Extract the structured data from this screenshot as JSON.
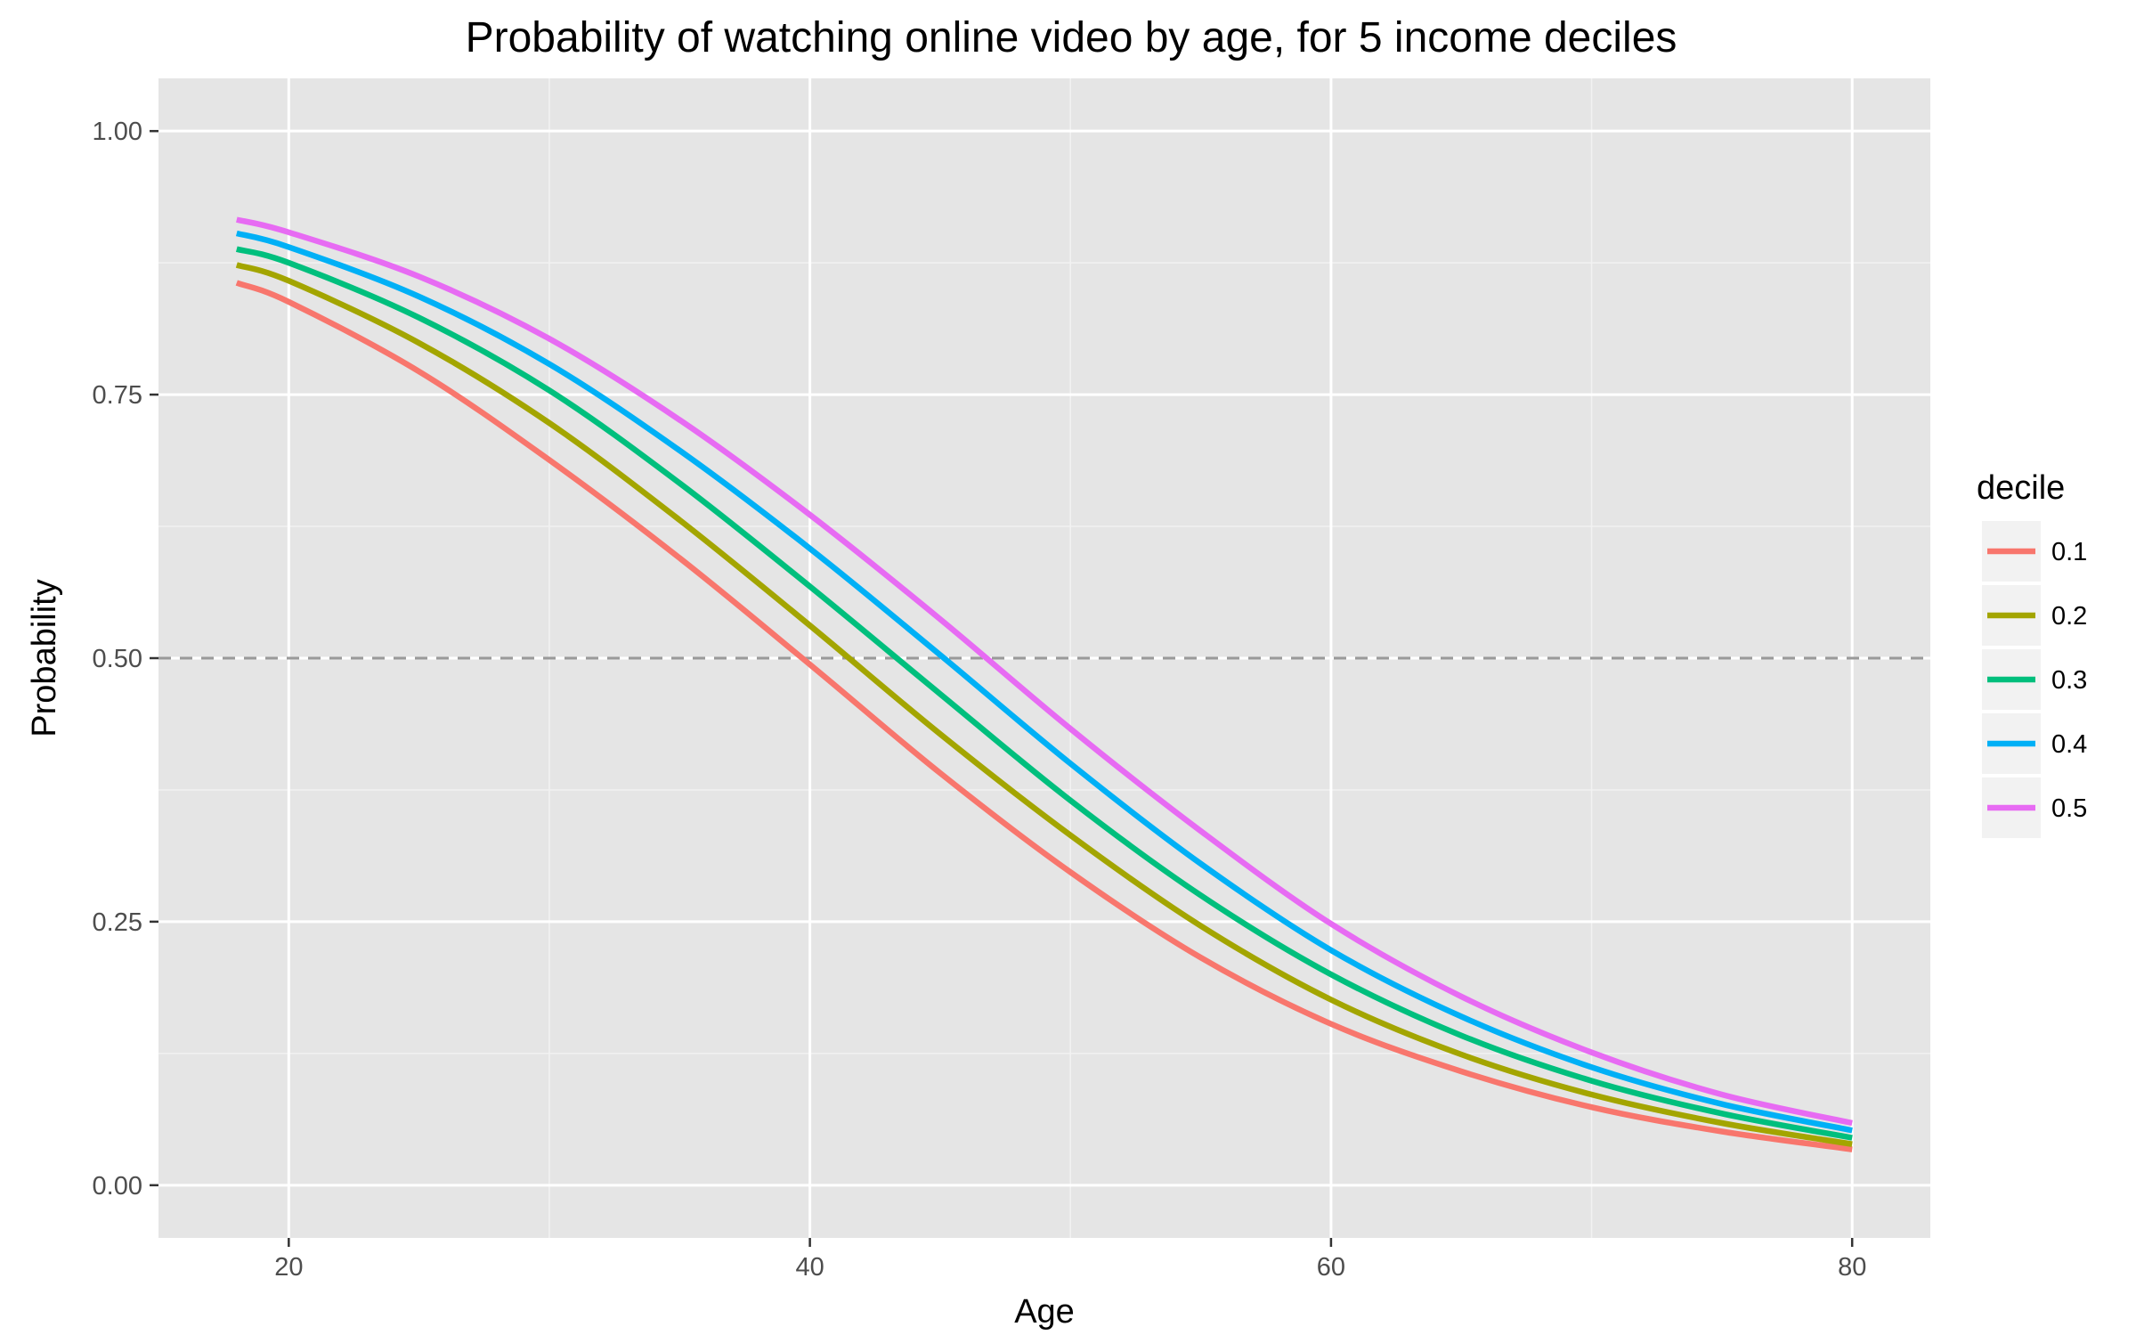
{
  "chart_data": {
    "type": "line",
    "title": "Probability of watching online video by age, for 5 income deciles",
    "xlabel": "Age",
    "ylabel": "Probability",
    "xlim": [
      15,
      83
    ],
    "ylim": [
      -0.05,
      1.05
    ],
    "x_ticks": [
      20,
      40,
      60,
      80
    ],
    "x_tick_labels": [
      "20",
      "40",
      "60",
      "80"
    ],
    "y_ticks": [
      0,
      0.25,
      0.5,
      0.75,
      1
    ],
    "y_tick_labels": [
      "0.00",
      "0.25",
      "0.50",
      "0.75",
      "1.00"
    ],
    "grid": true,
    "legend_title": "decile",
    "legend_position": "right",
    "reference_line": {
      "y": 0.5,
      "style": "dashed",
      "color": "#999999"
    },
    "x": [
      18,
      20,
      25,
      30,
      35,
      40,
      45,
      50,
      55,
      60,
      65,
      70,
      75,
      80
    ],
    "series": [
      {
        "name": "0.1",
        "color": "#F8766D",
        "values": [
          0.856,
          0.838,
          0.772,
          0.688,
          0.595,
          0.494,
          0.391,
          0.297,
          0.216,
          0.153,
          0.108,
          0.074,
          0.051,
          0.034
        ]
      },
      {
        "name": "0.2",
        "color": "#A3A500",
        "values": [
          0.873,
          0.858,
          0.799,
          0.723,
          0.631,
          0.531,
          0.428,
          0.332,
          0.246,
          0.176,
          0.124,
          0.086,
          0.059,
          0.039
        ]
      },
      {
        "name": "0.3",
        "color": "#00BF7D",
        "values": [
          0.888,
          0.875,
          0.823,
          0.754,
          0.666,
          0.568,
          0.466,
          0.365,
          0.275,
          0.2,
          0.142,
          0.099,
          0.068,
          0.045
        ]
      },
      {
        "name": "0.4",
        "color": "#00B0F6",
        "values": [
          0.903,
          0.89,
          0.843,
          0.779,
          0.697,
          0.604,
          0.503,
          0.4,
          0.305,
          0.223,
          0.16,
          0.112,
          0.077,
          0.052
        ]
      },
      {
        "name": "0.5",
        "color": "#E76BF3",
        "values": [
          0.916,
          0.904,
          0.862,
          0.803,
          0.726,
          0.636,
          0.537,
          0.433,
          0.336,
          0.248,
          0.179,
          0.126,
          0.086,
          0.059
        ]
      }
    ]
  }
}
